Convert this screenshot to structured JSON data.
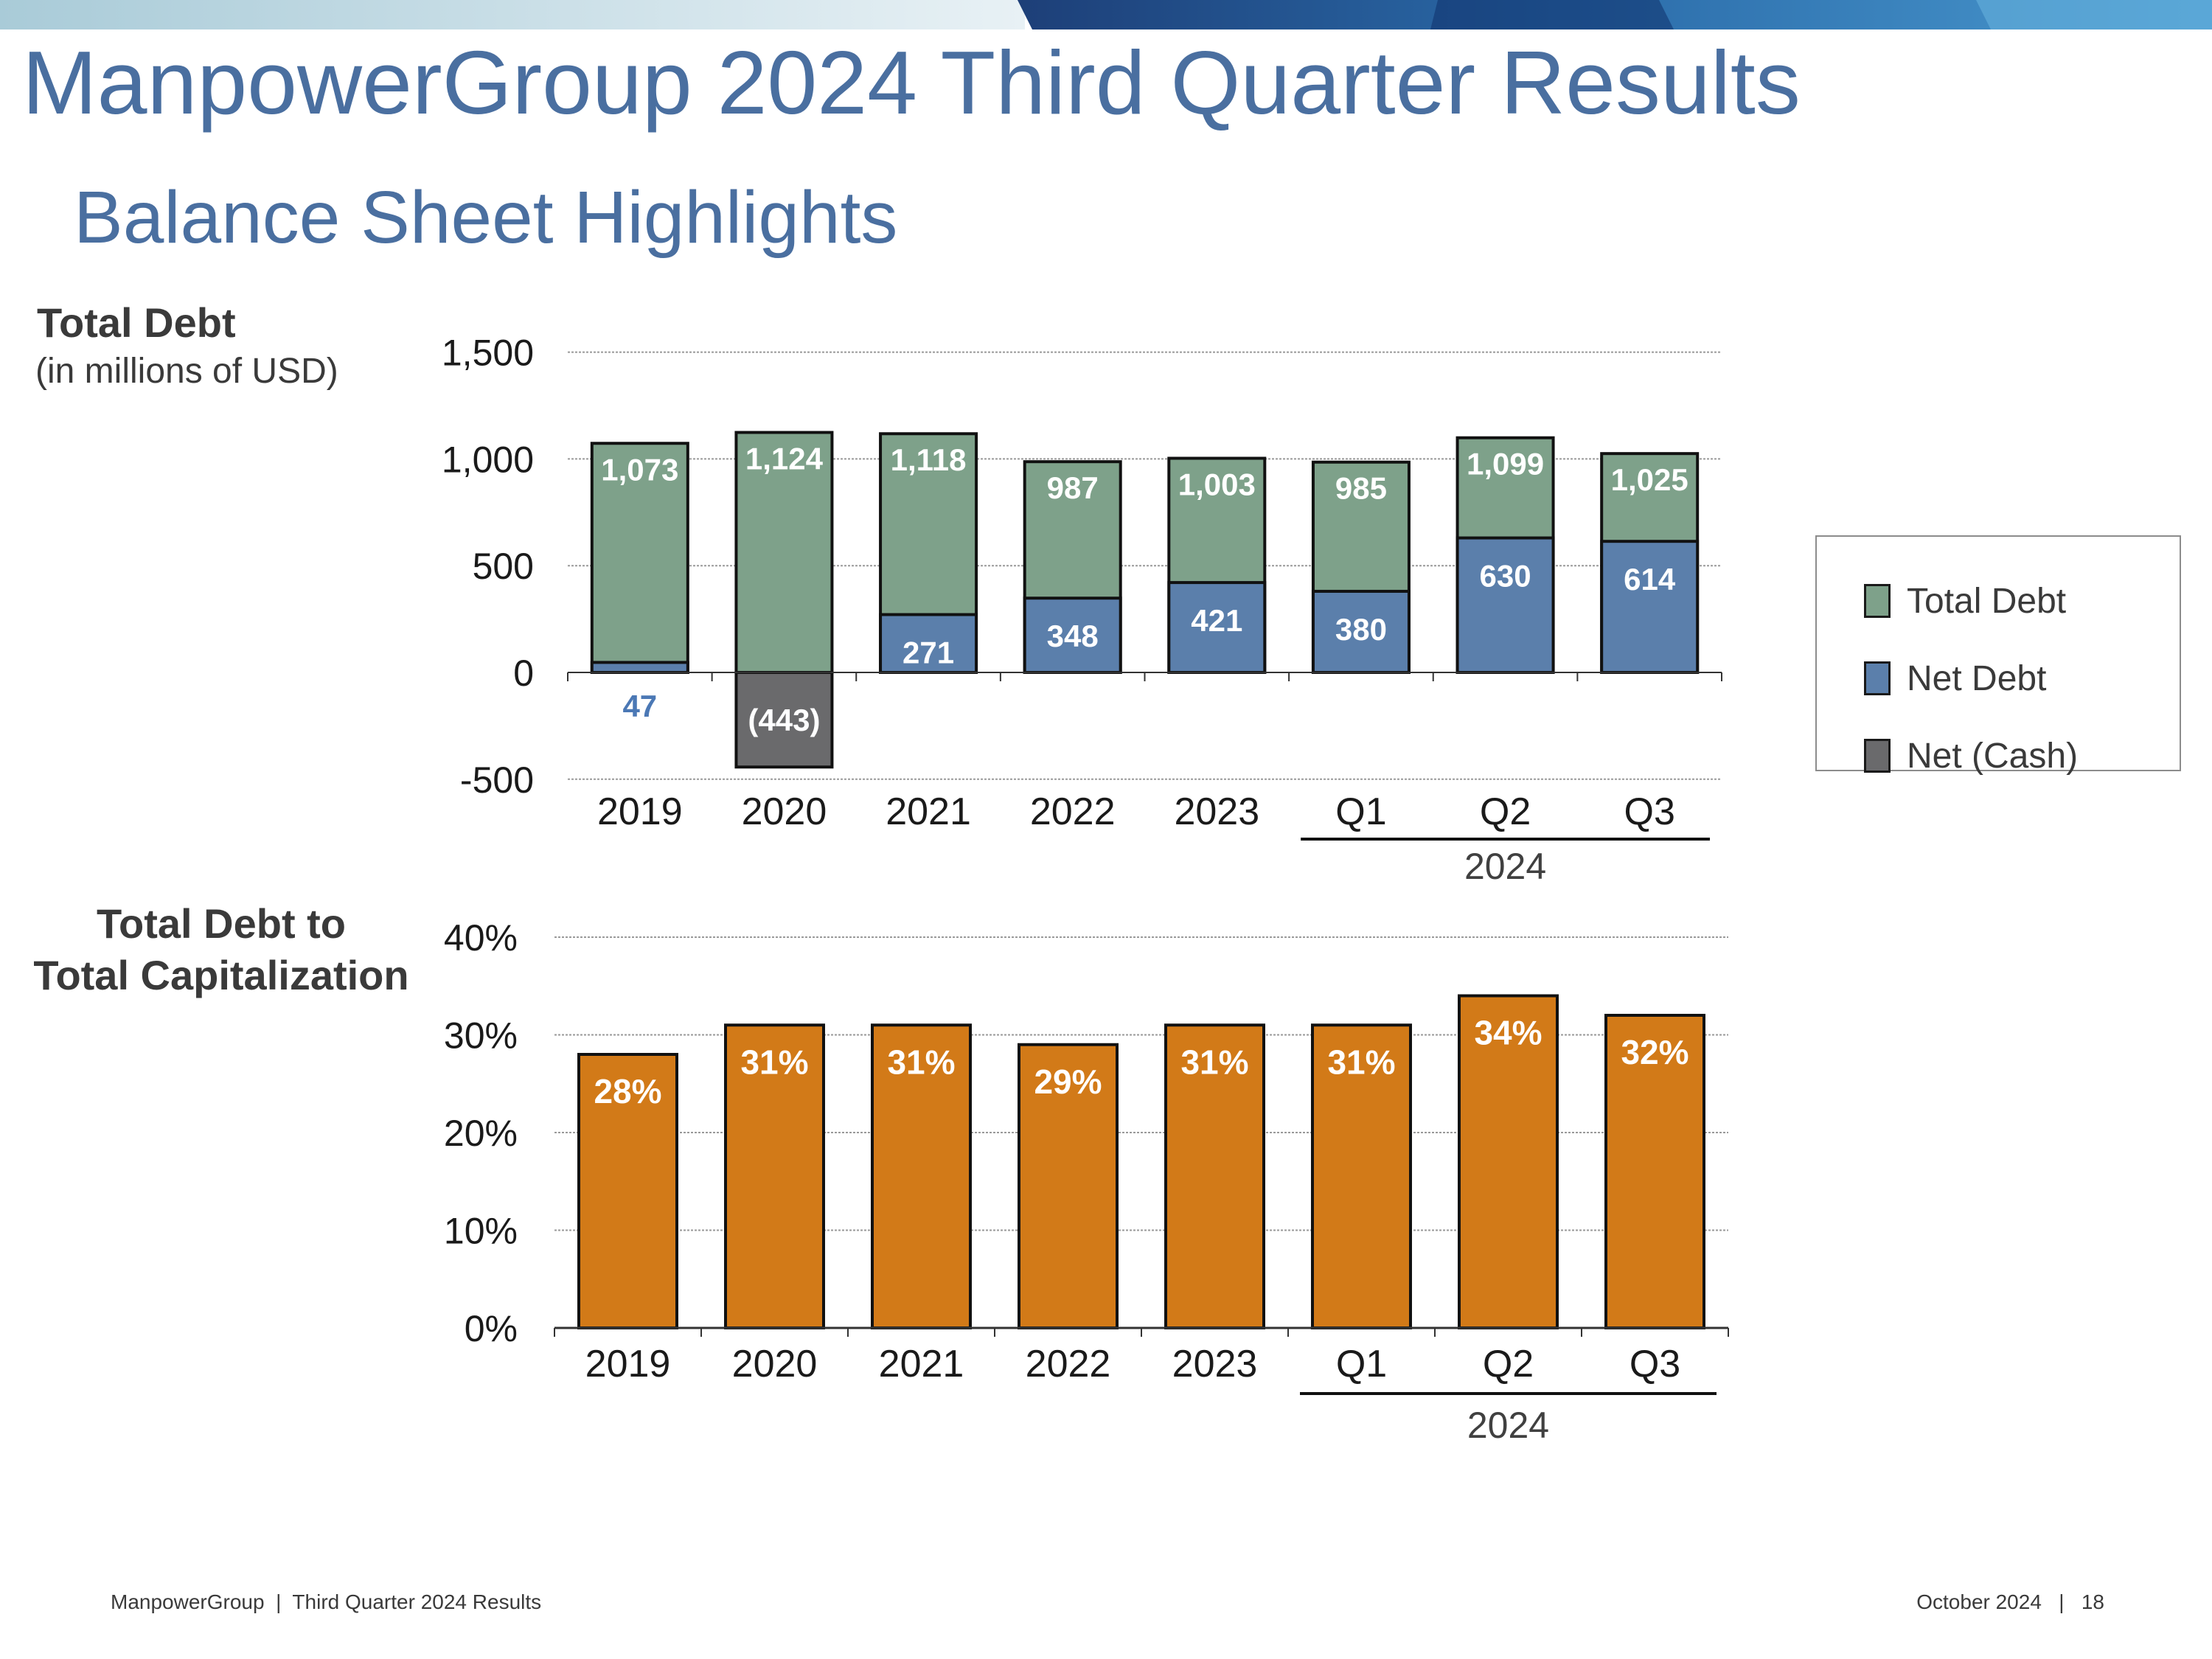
{
  "header": {
    "title": "ManpowerGroup 2024 Third Quarter Results",
    "subtitle": "Balance Sheet Highlights"
  },
  "debt_section": {
    "heading": "Total Debt",
    "unit": "(in millions of USD)"
  },
  "cap_section": {
    "heading_line1": "Total Debt to",
    "heading_line2": "Total Capitalization"
  },
  "legend": {
    "items": [
      {
        "label": "Total Debt",
        "color": "#7ea18a"
      },
      {
        "label": "Net Debt",
        "color": "#5b7fab"
      },
      {
        "label": "Net (Cash)",
        "color": "#6a6a6c"
      }
    ]
  },
  "chart_data": [
    {
      "type": "bar",
      "title": "Total Debt",
      "ylabel": "(in millions of USD)",
      "categories": [
        "2019",
        "2020",
        "2021",
        "2022",
        "2023",
        "Q1",
        "Q2",
        "Q3"
      ],
      "group_label": "2024",
      "group_start": 5,
      "yticks": [
        "1,500",
        "1,000",
        "500",
        "0",
        "-500"
      ],
      "ytick_values": [
        1500,
        1000,
        500,
        0,
        -500
      ],
      "ylim": [
        -500,
        1500
      ],
      "series": [
        {
          "name": "Total Debt",
          "color": "#7ea18a",
          "values": [
            1073,
            1124,
            1118,
            987,
            1003,
            985,
            1099,
            1025
          ],
          "labels": [
            "1,073",
            "1,124",
            "1,118",
            "987",
            "1,003",
            "985",
            "1,099",
            "1,025"
          ]
        },
        {
          "name": "Net Debt",
          "color": "#5b7fab",
          "values": [
            47,
            null,
            271,
            348,
            421,
            380,
            630,
            614
          ],
          "labels": [
            "47",
            "",
            "271",
            "348",
            "421",
            "380",
            "630",
            "614"
          ]
        },
        {
          "name": "Net (Cash)",
          "color": "#6a6a6c",
          "values": [
            null,
            -443,
            null,
            null,
            null,
            null,
            null,
            null
          ],
          "labels": [
            "",
            "(443)",
            "",
            "",
            "",
            "",
            "",
            ""
          ]
        }
      ]
    },
    {
      "type": "bar",
      "title": "Total Debt to Total Capitalization",
      "categories": [
        "2019",
        "2020",
        "2021",
        "2022",
        "2023",
        "Q1",
        "Q2",
        "Q3"
      ],
      "group_label": "2024",
      "group_start": 5,
      "yticks": [
        "40%",
        "30%",
        "20%",
        "10%",
        "0%"
      ],
      "ytick_values": [
        40,
        30,
        20,
        10,
        0
      ],
      "ylim": [
        0,
        40
      ],
      "color": "#d27a18",
      "values": [
        28,
        31,
        31,
        29,
        31,
        31,
        34,
        32
      ],
      "labels": [
        "28%",
        "31%",
        "31%",
        "29%",
        "31%",
        "31%",
        "34%",
        "32%"
      ]
    }
  ],
  "footer": {
    "left": "ManpowerGroup  |  Third Quarter 2024 Results",
    "right": "October 2024   |   18"
  }
}
